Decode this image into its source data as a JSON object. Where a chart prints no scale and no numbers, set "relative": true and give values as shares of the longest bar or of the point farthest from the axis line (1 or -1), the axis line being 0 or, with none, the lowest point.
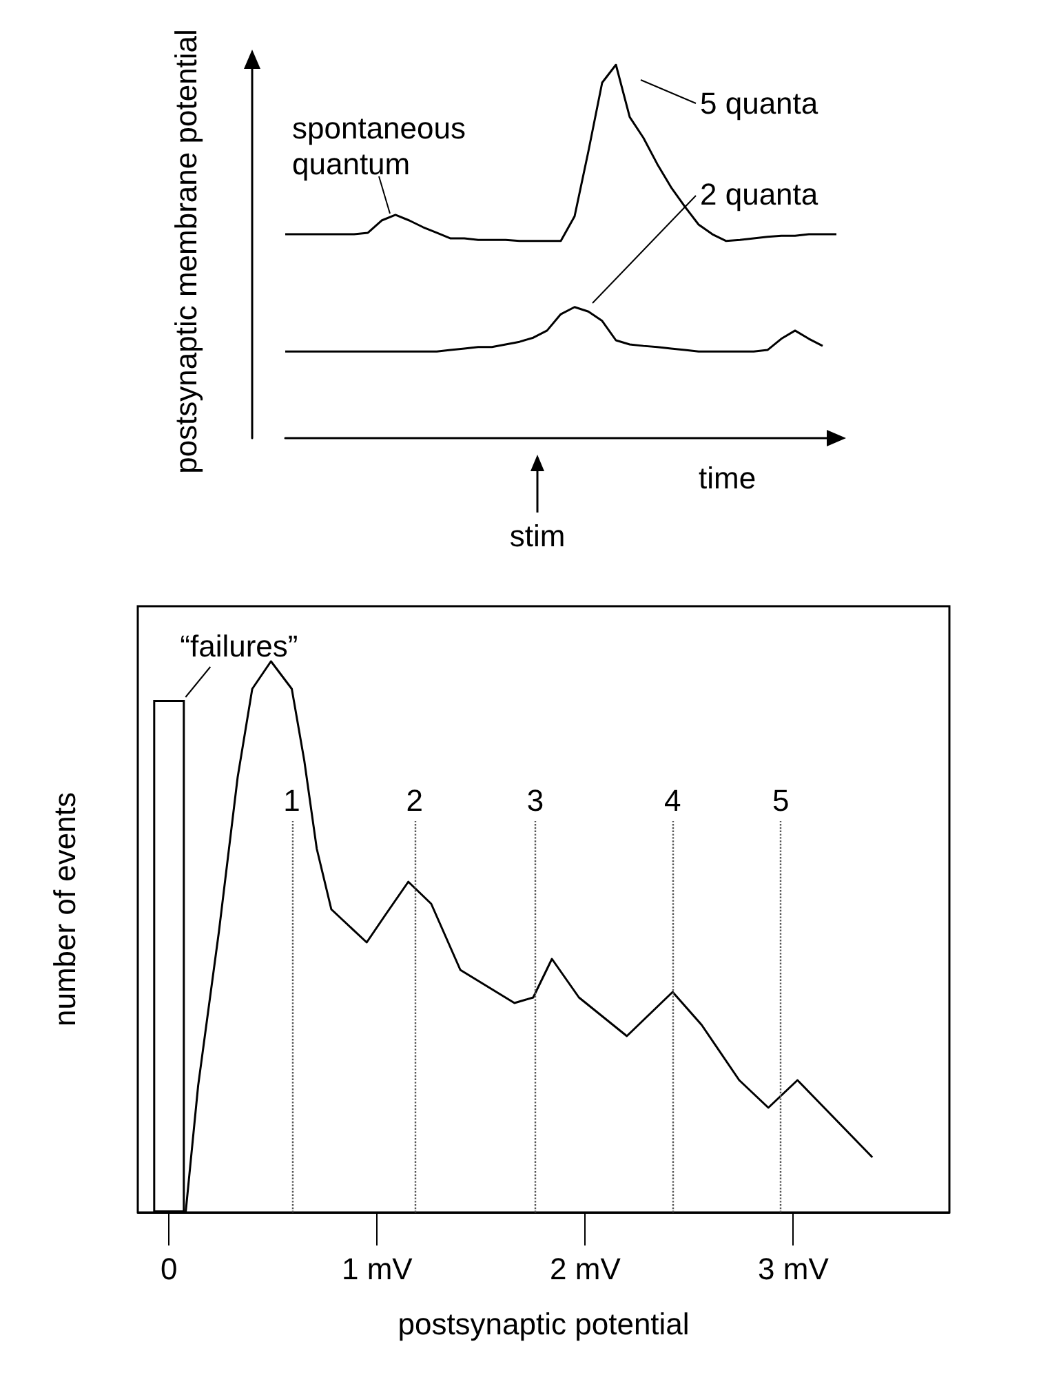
{
  "chart_data": [
    {
      "type": "line",
      "relative": true,
      "xlabel": "time",
      "ylabel": "postsynaptic membrane potential",
      "annotations": [
        "spontaneous quantum",
        "5 quanta",
        "2 quanta",
        "stim"
      ],
      "grid": false,
      "tick_labels": false,
      "marker": "none",
      "categories": [
        null,
        null,
        null,
        null,
        null,
        null,
        null,
        null,
        null,
        null,
        null,
        null,
        null,
        null,
        null,
        null,
        null,
        null,
        null,
        null,
        null,
        null,
        null,
        null,
        null,
        null,
        null,
        null,
        null,
        null,
        null,
        null,
        null,
        null,
        null,
        null,
        null,
        null,
        null,
        null,
        null
      ],
      "series": [
        {
          "color": "#000000",
          "values": [
            0.546,
            0.546,
            0.546,
            0.546,
            0.546,
            0.546,
            0.55,
            0.583,
            0.598,
            0.583,
            0.565,
            0.55,
            0.535,
            0.535,
            0.531,
            0.531,
            0.531,
            0.528,
            0.528,
            0.528,
            0.528,
            0.594,
            0.768,
            0.952,
            1,
            0.86,
            0.804,
            0.734,
            0.672,
            0.62,
            0.572,
            0.546,
            0.528,
            0.531,
            0.535,
            0.539,
            0.542,
            0.542,
            0.546,
            0.546,
            0.546
          ]
        },
        {
          "color": "#000000",
          "values": [
            0.232,
            0.232,
            0.232,
            0.232,
            0.232,
            0.232,
            0.232,
            0.232,
            0.232,
            0.232,
            0.232,
            0.232,
            0.236,
            0.24,
            0.244,
            0.244,
            0.251,
            0.258,
            0.269,
            0.288,
            0.332,
            0.351,
            0.339,
            0.314,
            0.262,
            0.251,
            0.247,
            0.244,
            0.24,
            0.236,
            0.232,
            0.232,
            0.232,
            0.232,
            0.232,
            0.236,
            0.266,
            0.288,
            0.266,
            0.247,
            null
          ]
        }
      ]
    },
    {
      "type": "line",
      "relative": true,
      "xlabel": "postsynaptic potential",
      "ylabel": "number of events",
      "xlim": [
        -0.15,
        3.75
      ],
      "xticks": [
        0,
        {
          "value": 1,
          "label": "1 mV"
        },
        {
          "value": 2,
          "label": "2 mV"
        },
        {
          "value": 3,
          "label": "3 mV"
        }
      ],
      "tick_labels": "x",
      "grid": false,
      "marker": "none",
      "annotations": [
        {
          "text": "“failures”",
          "x": 0,
          "y": 0.93
        },
        {
          "text": "1",
          "x": 0.59,
          "y": 0.72
        },
        {
          "text": "2",
          "x": 1.18,
          "y": 0.72
        },
        {
          "text": "3",
          "x": 1.76,
          "y": 0.72
        },
        {
          "text": "4",
          "x": 2.42,
          "y": 0.72
        },
        {
          "text": "5",
          "x": 2.94,
          "y": 0.72
        }
      ],
      "ref_lines": [
        {
          "axis": "x",
          "value": 0.59,
          "line_style": "dotted",
          "color": "#555555"
        },
        {
          "axis": "x",
          "value": 1.18,
          "line_style": "dotted",
          "color": "#555555"
        },
        {
          "axis": "x",
          "value": 1.76,
          "line_style": "dotted",
          "color": "#555555"
        },
        {
          "axis": "x",
          "value": 2.42,
          "line_style": "dotted",
          "color": "#555555"
        },
        {
          "axis": "x",
          "value": 2.94,
          "line_style": "dotted",
          "color": "#555555"
        }
      ],
      "series": [
        {
          "type": "bar",
          "x": [
            0
          ],
          "values": [
            0.93
          ],
          "color": "#ffffff"
        },
        {
          "type": "line",
          "color": "#000000",
          "x": [
            0.08,
            0.14,
            0.24,
            0.33,
            0.4,
            0.49,
            0.59,
            0.65,
            0.71,
            0.78,
            0.95,
            1.04,
            1.15,
            1.26,
            1.4,
            1.66,
            1.75,
            1.84,
            1.97,
            2.2,
            2.42,
            2.56,
            2.74,
            2.88,
            3.02,
            3.38
          ],
          "values": [
            0,
            0.23,
            0.51,
            0.79,
            0.95,
            1,
            0.95,
            0.82,
            0.66,
            0.55,
            0.49,
            0.54,
            0.6,
            0.56,
            0.44,
            0.38,
            0.39,
            0.46,
            0.39,
            0.32,
            0.4,
            0.34,
            0.24,
            0.19,
            0.24,
            0.1
          ]
        }
      ]
    }
  ]
}
